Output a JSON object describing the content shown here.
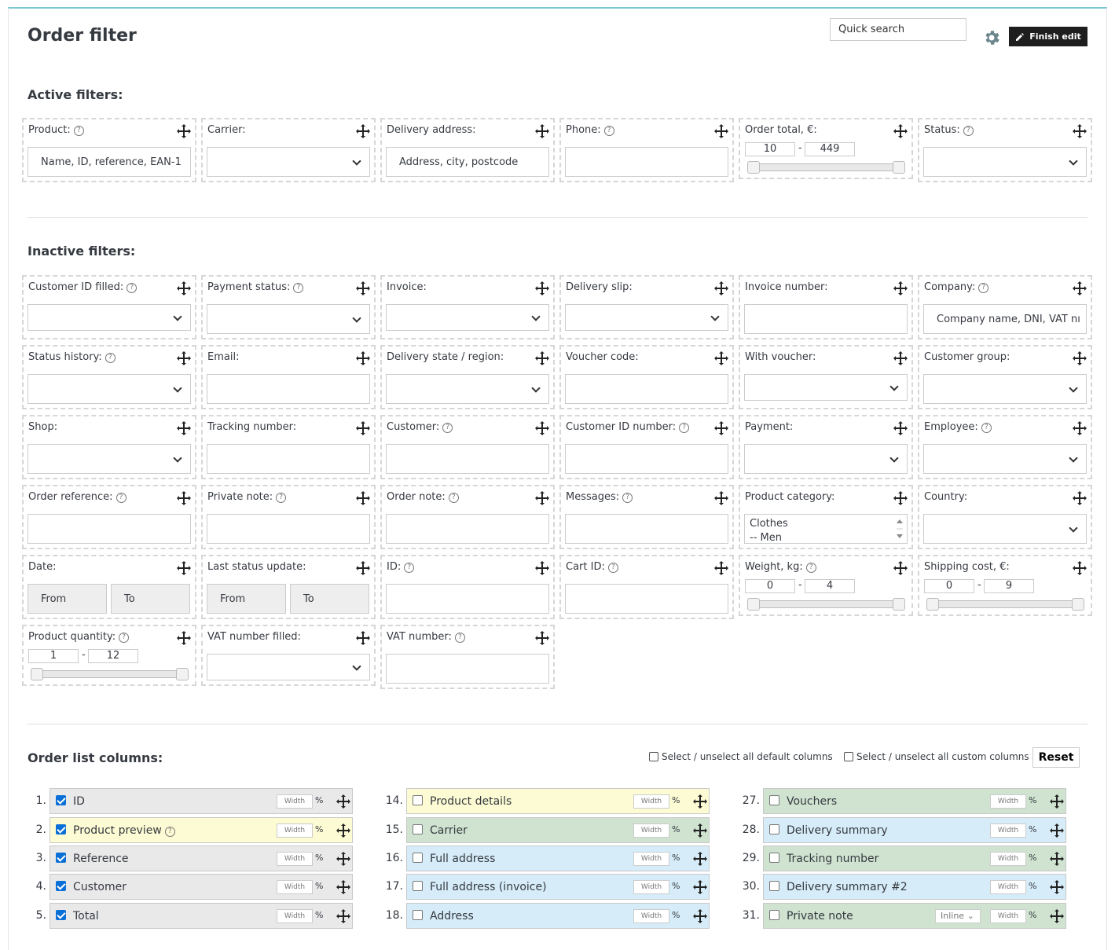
{
  "header": {
    "title": "Order filter",
    "quick_search_placeholder": "Quick search",
    "finish_label": "Finish edit"
  },
  "sections": {
    "active": "Active filters:",
    "inactive": "Inactive filters:",
    "columns": "Order list columns:"
  },
  "active_filters": {
    "product": {
      "label": "Product:",
      "placeholder": "Name, ID, reference, EAN-1"
    },
    "carrier": {
      "label": "Carrier:"
    },
    "delivery_address": {
      "label": "Delivery address:",
      "placeholder": "Address, city, postcode"
    },
    "phone": {
      "label": "Phone:"
    },
    "order_total": {
      "label": "Order total, €:",
      "min": "10",
      "max": "449"
    },
    "status": {
      "label": "Status:"
    }
  },
  "inactive_filters": {
    "customer_id_filled": "Customer ID filled:",
    "payment_status": "Payment status:",
    "invoice": "Invoice:",
    "delivery_slip": "Delivery slip:",
    "invoice_number": "Invoice number:",
    "company": {
      "label": "Company:",
      "placeholder": "Company name, DNI, VAT nı"
    },
    "status_history": "Status history:",
    "email": "Email:",
    "delivery_state": "Delivery state / region:",
    "voucher_code": "Voucher code:",
    "with_voucher": "With voucher:",
    "customer_group": "Customer group:",
    "shop": "Shop:",
    "tracking_number": "Tracking number:",
    "customer": "Customer:",
    "customer_id_number": "Customer ID number:",
    "payment": "Payment:",
    "employee": "Employee:",
    "order_reference": "Order reference:",
    "private_note": "Private note:",
    "order_note": "Order note:",
    "messages": "Messages:",
    "product_category": {
      "label": "Product category:",
      "options": [
        "Clothes",
        "-- Men"
      ]
    },
    "country": "Country:",
    "date": {
      "label": "Date:",
      "from": "From",
      "to": "To"
    },
    "last_status_update": {
      "label": "Last status update:",
      "from": "From",
      "to": "To"
    },
    "id": "ID:",
    "cart_id": "Cart ID:",
    "weight": {
      "label": "Weight, kg:",
      "min": "0",
      "max": "4"
    },
    "shipping_cost": {
      "label": "Shipping cost, €:",
      "min": "0",
      "max": "9"
    },
    "product_quantity": {
      "label": "Product quantity:",
      "min": "1",
      "max": "12"
    },
    "vat_number_filled": "VAT number filled:",
    "vat_number": "VAT number:"
  },
  "columns_opts": {
    "default": "Select / unselect all default columns",
    "custom": "Select / unselect all custom columns",
    "reset": "Reset",
    "width": "Width",
    "pct": "%",
    "inline": "Inline"
  },
  "columns": [
    {
      "num": "1.",
      "name": "ID",
      "checked": true,
      "color": "grey"
    },
    {
      "num": "2.",
      "name": "Product preview",
      "checked": true,
      "color": "yellow",
      "help": true
    },
    {
      "num": "3.",
      "name": "Reference",
      "checked": true,
      "color": "grey"
    },
    {
      "num": "4.",
      "name": "Customer",
      "checked": true,
      "color": "grey"
    },
    {
      "num": "5.",
      "name": "Total",
      "checked": true,
      "color": "grey"
    },
    {
      "num": "14.",
      "name": "Product details",
      "checked": false,
      "color": "yellow"
    },
    {
      "num": "15.",
      "name": "Carrier",
      "checked": false,
      "color": "green"
    },
    {
      "num": "16.",
      "name": "Full address",
      "checked": false,
      "color": "blue"
    },
    {
      "num": "17.",
      "name": "Full address (invoice)",
      "checked": false,
      "color": "blue"
    },
    {
      "num": "18.",
      "name": "Address",
      "checked": false,
      "color": "blue"
    },
    {
      "num": "27.",
      "name": "Vouchers",
      "checked": false,
      "color": "green"
    },
    {
      "num": "28.",
      "name": "Delivery summary",
      "checked": false,
      "color": "blue"
    },
    {
      "num": "29.",
      "name": "Tracking number",
      "checked": false,
      "color": "green"
    },
    {
      "num": "30.",
      "name": "Delivery summary #2",
      "checked": false,
      "color": "blue"
    },
    {
      "num": "31.",
      "name": "Private note",
      "checked": false,
      "color": "green",
      "inline": true
    }
  ]
}
